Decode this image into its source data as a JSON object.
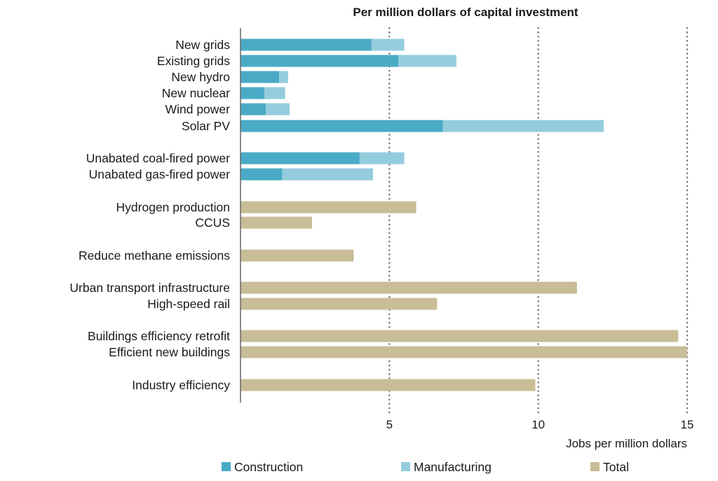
{
  "chart_data": {
    "type": "bar",
    "orientation": "horizontal",
    "stacked": true,
    "title": "Per million dollars of capital investment",
    "xlabel": "Jobs per million dollars",
    "xlim": [
      0,
      15
    ],
    "xticks": [
      "5",
      "10",
      "15"
    ],
    "grid": "vertical dotted",
    "legend_position": "bottom",
    "colors": {
      "Construction": "#4aabc6",
      "Manufacturing": "#95ccdd",
      "Total": "#c8bd97"
    },
    "categories": [
      "New grids",
      "Existing grids",
      "New hydro",
      "New nuclear",
      "Wind power",
      "Solar PV",
      "Unabated coal-fired power",
      "Unabated gas-fired power",
      "Hydrogen production",
      "CCUS",
      "Reduce methane emissions",
      "Urban transport infrastructure",
      "High-speed rail",
      "Buildings efficiency retrofit",
      "Efficient new buildings",
      "Industry efficiency"
    ],
    "series": [
      {
        "name": "Construction",
        "values": [
          4.4,
          5.3,
          1.3,
          0.8,
          0.85,
          6.8,
          4.0,
          1.4,
          null,
          null,
          null,
          null,
          null,
          null,
          null,
          null
        ]
      },
      {
        "name": "Manufacturing",
        "values": [
          1.1,
          1.95,
          0.3,
          0.7,
          0.8,
          5.4,
          1.5,
          3.05,
          null,
          null,
          null,
          null,
          null,
          null,
          null,
          null
        ]
      },
      {
        "name": "Total",
        "values": [
          null,
          null,
          null,
          null,
          null,
          null,
          null,
          null,
          5.9,
          2.4,
          3.8,
          11.3,
          6.6,
          14.7,
          15.0,
          9.9
        ]
      }
    ]
  }
}
